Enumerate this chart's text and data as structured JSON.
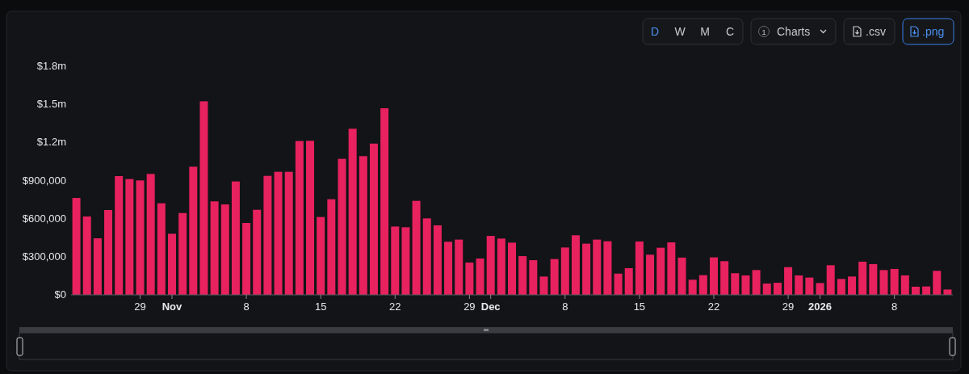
{
  "chart_data": {
    "type": "bar",
    "color": "#e8215f",
    "x": [
      "2025-10-23",
      "2025-10-24",
      "2025-10-25",
      "2025-10-26",
      "2025-10-27",
      "2025-10-28",
      "2025-10-29",
      "2025-10-30",
      "2025-10-31",
      "2025-11-01",
      "2025-11-02",
      "2025-11-03",
      "2025-11-04",
      "2025-11-05",
      "2025-11-06",
      "2025-11-07",
      "2025-11-08",
      "2025-11-09",
      "2025-11-10",
      "2025-11-11",
      "2025-11-12",
      "2025-11-13",
      "2025-11-14",
      "2025-11-15",
      "2025-11-16",
      "2025-11-17",
      "2025-11-18",
      "2025-11-19",
      "2025-11-20",
      "2025-11-21",
      "2025-11-22",
      "2025-11-23",
      "2025-11-24",
      "2025-11-25",
      "2025-11-26",
      "2025-11-27",
      "2025-11-28",
      "2025-11-29",
      "2025-11-30",
      "2025-12-01",
      "2025-12-02",
      "2025-12-03",
      "2025-12-04",
      "2025-12-05",
      "2025-12-06",
      "2025-12-07",
      "2025-12-08",
      "2025-12-09",
      "2025-12-10",
      "2025-12-11",
      "2025-12-12",
      "2025-12-13",
      "2025-12-14",
      "2025-12-15",
      "2025-12-16",
      "2025-12-17",
      "2025-12-18",
      "2025-12-19",
      "2025-12-20",
      "2025-12-21",
      "2025-12-22",
      "2025-12-23",
      "2025-12-24",
      "2025-12-25",
      "2025-12-26",
      "2025-12-27",
      "2025-12-28",
      "2025-12-29",
      "2025-12-30",
      "2025-12-31",
      "2026-01-01",
      "2026-01-02",
      "2026-01-03",
      "2026-01-04",
      "2026-01-05",
      "2026-01-06",
      "2026-01-07",
      "2026-01-08",
      "2026-01-09",
      "2026-01-10",
      "2026-01-11",
      "2026-01-12",
      "2026-01-13"
    ],
    "values": [
      763000,
      617000,
      445000,
      668000,
      935000,
      912000,
      901000,
      952000,
      721000,
      481000,
      644000,
      1009000,
      1524000,
      736000,
      712000,
      893000,
      566000,
      670000,
      937000,
      969000,
      969000,
      1211000,
      1213000,
      613000,
      753000,
      1071000,
      1308000,
      1092000,
      1191000,
      1469000,
      538000,
      532000,
      740000,
      602000,
      547000,
      418000,
      435000,
      254000,
      286000,
      464000,
      443000,
      411000,
      305000,
      273000,
      144000,
      282000,
      373000,
      469000,
      403000,
      435000,
      422000,
      167000,
      210000,
      420000,
      316000,
      371000,
      413000,
      293000,
      119000,
      155000,
      295000,
      265000,
      170000,
      153000,
      195000,
      89000,
      95000,
      218000,
      153000,
      136000,
      93000,
      233000,
      125000,
      144000,
      261000,
      242000,
      195000,
      204000,
      153000,
      64000,
      66000,
      189000,
      42000
    ],
    "xlim": [
      "2025-10-22T12:00",
      "2026-01-13T12:00"
    ],
    "xticks": [
      {
        "value": "2025-10-29",
        "label": "29"
      },
      {
        "value": "2025-11-01",
        "label": "Nov"
      },
      {
        "value": "2025-11-08",
        "label": "8"
      },
      {
        "value": "2025-11-15",
        "label": "15"
      },
      {
        "value": "2025-11-22",
        "label": "22"
      },
      {
        "value": "2025-11-29",
        "label": "29"
      },
      {
        "value": "2025-12-01",
        "label": "Dec"
      },
      {
        "value": "2025-12-08",
        "label": "8"
      },
      {
        "value": "2025-12-15",
        "label": "15"
      },
      {
        "value": "2025-12-22",
        "label": "22"
      },
      {
        "value": "2025-12-29",
        "label": "29"
      },
      {
        "value": "2026-01-01",
        "label": "2026"
      },
      {
        "value": "2026-01-08",
        "label": "8"
      }
    ],
    "ylim": [
      0,
      1800000
    ],
    "yticks": [
      {
        "value": 0,
        "label": "$0"
      },
      {
        "value": 300000,
        "label": "$300,000"
      },
      {
        "value": 600000,
        "label": "$600,000"
      },
      {
        "value": 900000,
        "label": "$900,000"
      },
      {
        "value": 1200000,
        "label": "$1.2m"
      },
      {
        "value": 1500000,
        "label": "$1.5m"
      },
      {
        "value": 1800000,
        "label": "$1.8m"
      }
    ],
    "grid": false,
    "annotations": [
      "D",
      "W",
      "M",
      "C",
      "1",
      "Charts",
      ".csv",
      ".png"
    ]
  }
}
